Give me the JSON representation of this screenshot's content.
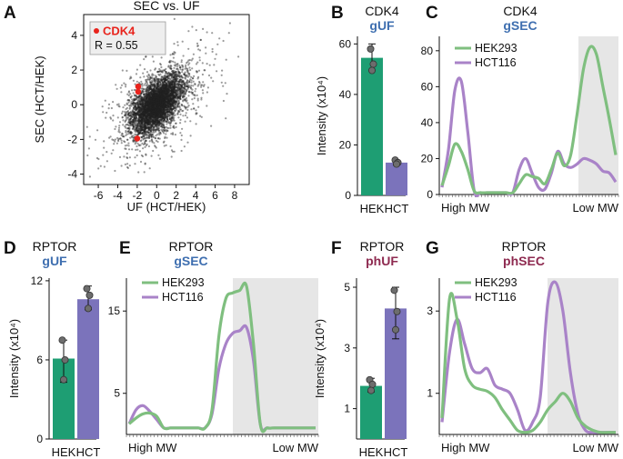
{
  "colors": {
    "green": "#1e9e73",
    "purple": "#7b73bb",
    "green_line": "#7fbf7f",
    "purple_line": "#a983c8",
    "shade": "#e6e6e6",
    "gUF": "#3f6fb0",
    "phospho": "#8e2a50",
    "red": "#e8231c"
  },
  "panels": {
    "A": {
      "letter": "A",
      "title": "SEC vs. UF",
      "legend_label": "CDK4",
      "legend_r": "R = 0.55"
    },
    "B": {
      "letter": "B",
      "title": "CDK4",
      "subtitle": "gUF"
    },
    "C": {
      "letter": "C",
      "title": "CDK4",
      "subtitle": "gSEC"
    },
    "D": {
      "letter": "D",
      "title": "RPTOR",
      "subtitle": "gUF"
    },
    "E": {
      "letter": "E",
      "title": "RPTOR",
      "subtitle": "gSEC"
    },
    "F": {
      "letter": "F",
      "title": "RPTOR",
      "subtitle": "phUF"
    },
    "G": {
      "letter": "G",
      "title": "RPTOR",
      "subtitle": "phSEC"
    }
  },
  "chart_data": [
    {
      "id": "A",
      "type": "scatter",
      "title": "SEC vs. UF",
      "xlabel": "UF (HCT/HEK)",
      "ylabel": "SEC (HCT/HEK)",
      "xlim": [
        -7.5,
        9.5
      ],
      "ylim": [
        -4.6,
        5.2
      ],
      "xticks": [
        -6,
        -4,
        -2,
        0,
        2,
        4,
        6,
        8
      ],
      "yticks": [
        -4,
        -2,
        0,
        2,
        4
      ],
      "correlation": 0.55,
      "background": {
        "n_points": 5000,
        "sd_x": 1.35,
        "sd_y": 0.85,
        "r": 0.55
      },
      "highlight": {
        "name": "CDK4",
        "points": [
          [
            -1.9,
            1.05
          ],
          [
            -1.9,
            0.75
          ],
          [
            -2.0,
            -1.95
          ]
        ]
      },
      "legend": [
        "CDK4",
        "R = 0.55"
      ]
    },
    {
      "id": "B",
      "type": "bar",
      "title": "CDK4",
      "subtitle": "gUF",
      "ylabel": "Intensity (x10⁴)",
      "ylim": [
        0,
        63
      ],
      "yticks": [
        0,
        20,
        40,
        60
      ],
      "categories": [
        "HEK",
        "HCT"
      ],
      "values": [
        54.5,
        13
      ],
      "error": [
        [
          49.5,
          60
        ],
        [
          12,
          14
        ]
      ],
      "replicates": [
        [
          58,
          52,
          49.5
        ],
        [
          14,
          13,
          12.4
        ]
      ]
    },
    {
      "id": "C",
      "type": "line",
      "title": "CDK4",
      "subtitle": "gSEC",
      "ylim": [
        0,
        88
      ],
      "yticks": [
        0,
        20,
        40,
        60,
        80
      ],
      "x_start_label": "High MW",
      "x_end_label": "Low MW",
      "shade_from_fraction": 41,
      "series": [
        {
          "name": "HEK293",
          "values": [
            5,
            16,
            28,
            24,
            14,
            2,
            1,
            1,
            1,
            1,
            1,
            1,
            6,
            11,
            10,
            9,
            6,
            14,
            23,
            16,
            22,
            45,
            70,
            82,
            78,
            60,
            42,
            22
          ]
        },
        {
          "name": "HCT116",
          "values": [
            4,
            25,
            58,
            63,
            35,
            2,
            1,
            1,
            1,
            1,
            1,
            1,
            14,
            20,
            12,
            4,
            3,
            12,
            24,
            17,
            15,
            17,
            20,
            19,
            17,
            13,
            12,
            7
          ]
        }
      ]
    },
    {
      "id": "D",
      "type": "bar",
      "title": "RPTOR",
      "subtitle": "gUF",
      "ylabel": "Intensity (x10⁴)",
      "ylim": [
        0,
        12.2
      ],
      "yticks": [
        0,
        6,
        12
      ],
      "categories": [
        "HEK",
        "HCT"
      ],
      "values": [
        6.1,
        10.6
      ],
      "error": [
        [
          4.3,
          7.5
        ],
        [
          9.8,
          11.6
        ]
      ],
      "replicates": [
        [
          7.5,
          6.0,
          4.5
        ],
        [
          11.4,
          10.9,
          9.9
        ]
      ]
    },
    {
      "id": "E",
      "type": "line",
      "title": "RPTOR",
      "subtitle": "gSEC",
      "ylim": [
        0,
        19
      ],
      "yticks": [
        5,
        15
      ],
      "x_start_label": "High MW",
      "x_end_label": "Low MW",
      "shade_from_fraction": 20,
      "series": [
        {
          "name": "HEK293",
          "values": [
            1.3,
            2.0,
            2.5,
            2.6,
            2.2,
            0.8,
            0.8,
            0.8,
            0.8,
            0.8,
            0.8,
            0.8,
            3.0,
            12,
            16.5,
            17.2,
            17.5,
            18,
            11,
            1.2,
            0.8,
            0.8,
            0.8,
            0.8,
            0.8,
            0.8,
            0.8,
            0.8
          ]
        },
        {
          "name": "HCT116",
          "values": [
            1.3,
            3.0,
            3.5,
            2.8,
            1.8,
            0.8,
            0.8,
            0.8,
            0.8,
            0.8,
            0.8,
            0.8,
            2.5,
            8,
            11,
            12.3,
            12.6,
            13,
            9,
            1.2,
            0.8,
            0.8,
            0.8,
            0.8,
            0.8,
            0.8,
            0.8,
            0.8
          ]
        }
      ]
    },
    {
      "id": "F",
      "type": "bar",
      "title": "RPTOR",
      "subtitle": "phUF",
      "ylabel": "Intensity (x10⁴)",
      "ylim": [
        0,
        5.3
      ],
      "yticks": [
        1,
        3,
        5
      ],
      "categories": [
        "HEK",
        "HCT"
      ],
      "values": [
        1.75,
        4.3
      ],
      "error": [
        [
          1.55,
          2.0
        ],
        [
          3.3,
          5.0
        ]
      ],
      "replicates": [
        [
          1.95,
          1.8,
          1.6
        ],
        [
          4.9,
          4.2,
          3.6
        ]
      ]
    },
    {
      "id": "G",
      "type": "line",
      "title": "RPTOR",
      "subtitle": "phSEC",
      "ylim": [
        0,
        3.8
      ],
      "yticks": [
        1,
        3
      ],
      "x_start_label": "High MW",
      "x_end_label": "Low MW",
      "shade_from_fraction": 20,
      "series": [
        {
          "name": "HEK293",
          "values": [
            0.4,
            3.3,
            2.8,
            1.6,
            1.2,
            1.1,
            1.05,
            0.9,
            0.6,
            0.35,
            0.1,
            0.05,
            0.1,
            0.3,
            0.6,
            0.8,
            1.0,
            0.8,
            0.4,
            0.2,
            0.1,
            0.05,
            0.05,
            0.05
          ]
        },
        {
          "name": "HCT116",
          "values": [
            0.3,
            2.0,
            2.8,
            2.2,
            1.6,
            1.5,
            1.6,
            1.2,
            1.1,
            1.0,
            0.6,
            0.1,
            0.3,
            0.9,
            3.2,
            3.7,
            3.0,
            1.5,
            0.5,
            0.1,
            0.05,
            0.05,
            0.05,
            0.05
          ]
        }
      ]
    }
  ]
}
